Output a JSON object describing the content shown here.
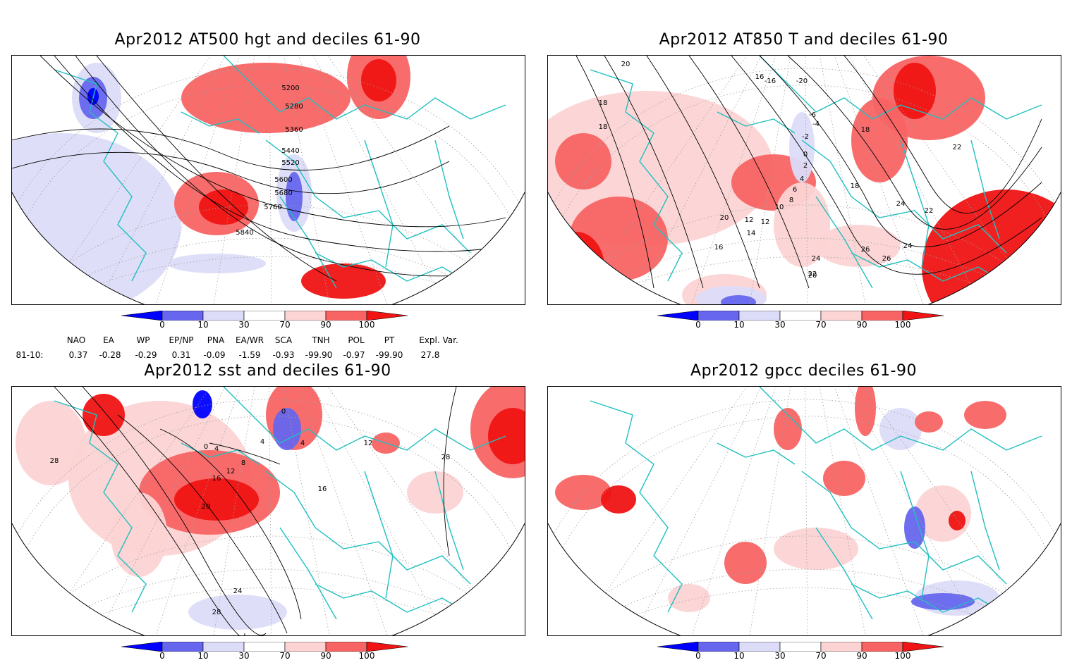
{
  "panels": [
    {
      "title": "Apr2012 AT500 hgt and deciles 61-90",
      "contour_labels": [
        "5200",
        "5280",
        "5360",
        "5440",
        "5520",
        "5600",
        "5680",
        "5760",
        "5840"
      ]
    },
    {
      "title": "Apr2012 AT850 T and deciles 61-90",
      "contour_labels": [
        "20",
        "18",
        "18",
        "16",
        "-16",
        "-20",
        "12",
        "-6",
        "-4",
        "-2",
        "0",
        "2",
        "4",
        "6",
        "8",
        "10",
        "12",
        "14",
        "16",
        "18",
        "18",
        "20",
        "22",
        "22",
        "24",
        "24",
        "24",
        "26",
        "26",
        "22",
        "20"
      ]
    },
    {
      "title": "Apr2012 sst and deciles 61-90",
      "contour_labels": [
        "28",
        "0",
        "0",
        "4",
        "4",
        "4",
        "8",
        "12",
        "16",
        "20",
        "24",
        "28",
        "28",
        "12",
        "16"
      ]
    },
    {
      "title": "Apr2012 gpcc deciles 61-90",
      "contour_labels": []
    }
  ],
  "colorbar": {
    "ticks": [
      "0",
      "10",
      "30",
      "70",
      "90",
      "100"
    ],
    "colors": [
      "#0000ff",
      "#6666ee",
      "#dcdcf8",
      "#ffffff",
      "#fcd4d4",
      "#f86464",
      "#f01414"
    ]
  },
  "indices": {
    "headers": [
      "NAO",
      "EA",
      "WP",
      "EP/NP",
      "PNA",
      "EA/WR",
      "SCA",
      "TNH",
      "POL",
      "PT",
      "Expl. Var."
    ],
    "row_label": "81-10:",
    "values": [
      "0.37",
      "-0.28",
      "-0.29",
      "0.31",
      "-0.09",
      "-1.59",
      "-0.93",
      "-99.90",
      "-0.97",
      "-99.90",
      "27.8"
    ]
  },
  "colors": {
    "coast": "#20c0c0",
    "contour": "#000000",
    "grid": "#a0a0a0"
  }
}
